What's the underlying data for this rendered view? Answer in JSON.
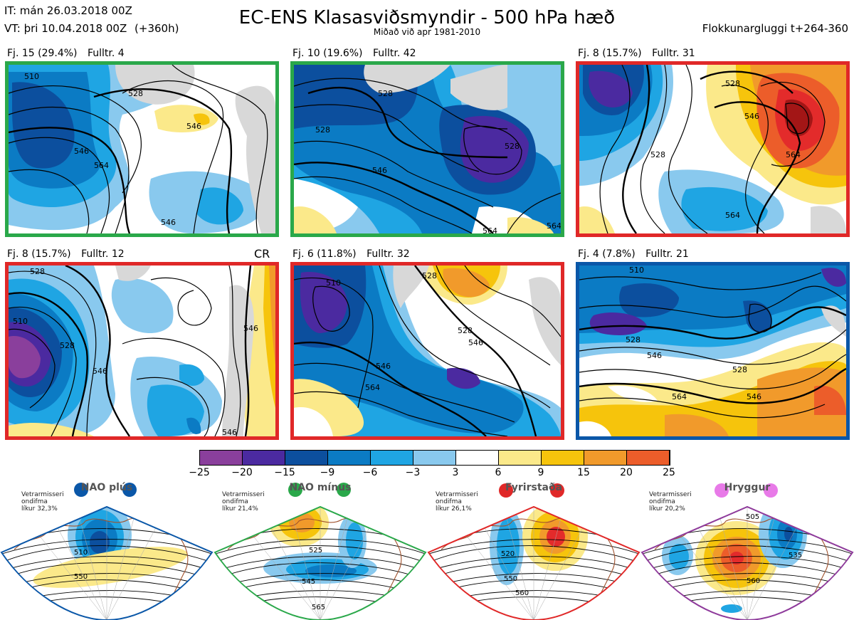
{
  "header": {
    "it": "IT: mán 26.03.2018 00Z",
    "vt": "VT: þri 10.04.2018 00Z",
    "vt_lead": "(+360h)",
    "title": "EC-ENS Klasasviðsmyndir - 500 hPa hæð",
    "subtitle": "Miðað við apr 1981-2010",
    "window": "Flokkunargluggi t+264-360"
  },
  "colors": {
    "green": "#2aa84a",
    "red": "#e02828",
    "blue": "#0a57a8",
    "purple": "#8e3a9b",
    "pink": "#e87ae8"
  },
  "clusters": [
    {
      "label": "Fj. 15 (29.4%)",
      "rep": "Fulltr. 4",
      "frame": "green",
      "contours": [
        "510",
        "528",
        "546",
        "564",
        "546",
        "546"
      ]
    },
    {
      "label": "Fj. 10 (19.6%)",
      "rep": "Fulltr. 42",
      "frame": "green",
      "contours": [
        "528",
        "528",
        "528",
        "546",
        "564",
        "564"
      ]
    },
    {
      "label": "Fj. 8 (15.7%)",
      "rep": "Fulltr. 31",
      "frame": "red",
      "contours": [
        "528",
        "546",
        "528",
        "564",
        "564"
      ]
    },
    {
      "label": "Fj. 8 (15.7%)",
      "rep": "Fulltr. 12",
      "frame": "red",
      "tag": "CR",
      "contours": [
        "528",
        "510",
        "528",
        "546",
        "546",
        "546"
      ]
    },
    {
      "label": "Fj. 6 (11.8%)",
      "rep": "Fulltr. 32",
      "frame": "red",
      "contours": [
        "510",
        "528",
        "546",
        "564",
        "528",
        "546"
      ]
    },
    {
      "label": "Fj. 4 (7.8%)",
      "rep": "Fulltr. 21",
      "frame": "blue",
      "contours": [
        "510",
        "528",
        "528",
        "546",
        "564",
        "546"
      ]
    }
  ],
  "colorbar": {
    "ticks": [
      "−25",
      "−20",
      "−15",
      "−9",
      "−6",
      "−3",
      "3",
      "6",
      "9",
      "15",
      "20",
      "25"
    ],
    "colors": [
      "#8a3f9c",
      "#4b2aa0",
      "#0c4f9e",
      "#0b7bc4",
      "#1fa5e3",
      "#89c9ee",
      "#ffffff",
      "#fbe98a",
      "#f6c40c",
      "#f19a2b",
      "#ec5d2a",
      "#e32b2b",
      "#a31616"
    ]
  },
  "regimes": [
    {
      "name": "NAO plús",
      "note": [
        "Vetrarmisseri",
        "ondifma",
        "líkur 32,3%"
      ],
      "color": "blue",
      "contours": [
        "510",
        "550"
      ]
    },
    {
      "name": "NAO mínus",
      "note": [
        "Vetrarmisseri",
        "ondifma",
        "líkur 21,4%"
      ],
      "color": "green",
      "contours": [
        "525",
        "545",
        "565"
      ]
    },
    {
      "name": "Fyrirstaða",
      "note": [
        "Vetrarmisseri",
        "ondifma",
        "líkur 26,1%"
      ],
      "color": "red",
      "contours": [
        "520",
        "550",
        "560"
      ]
    },
    {
      "name": "Hryggur",
      "note": [
        "Vetrarmisseri",
        "ondifma",
        "líkur 20,2%"
      ],
      "color": "purple",
      "dot_color": "pink",
      "contours": [
        "505",
        "535",
        "560"
      ]
    }
  ]
}
